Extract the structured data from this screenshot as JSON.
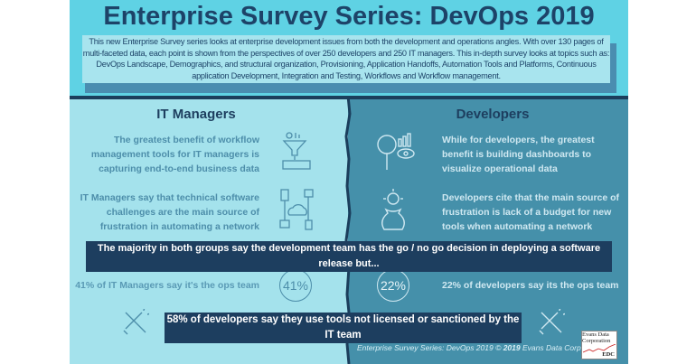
{
  "title": "Enterprise Survey Series: DevOps 2019",
  "intro": "This new Enterprise Survey series looks at enterprise development issues from both the development and operations angles.  With over 130 pages of multi-faceted data, each point is shown from  the perspectives of over 250 developers and 250 IT managers. This in-depth survey looks at topics such as:  DevOps Landscape, Demographics, and structural organization, Provisioning, Application Handoffs, Automation Tools and Platforms, Continuous application Development, Integration and Testing, Workflows and Workflow management.",
  "left": {
    "heading": "IT Managers",
    "point1": "The greatest benefit of workflow management tools for IT managers is capturing end-to-end business data",
    "point2": "IT Managers say that technical software challenges are the main source of frustration in automating a network",
    "stat_text": "41% of IT Managers say it's the ops team",
    "stat_circle": "41%"
  },
  "right": {
    "heading": "Developers",
    "point1": "While for developers, the greatest benefit is  building dashboards to visualize operational data",
    "point2": "Developers cite that the main source of frustration is lack of a budget for new tools when automating a network",
    "stat_text": "22% of developers  say its the ops team",
    "stat_circle": "22%"
  },
  "banner1": "The majority in both groups say the development team has the go / no go decision in deploying a software release but...",
  "banner2": "58% of developers say they use tools not licensed or sanctioned by the IT team",
  "credit": {
    "prefix": "Enterprise Survey Series: DevOps 2019 © ",
    "year": "2019",
    "suffix": " Evans Data Corp"
  },
  "logo": {
    "line1": "Evans Data",
    "line2": "Corporation",
    "abbr": "EDC"
  },
  "colors": {
    "header": "#5fd2e4",
    "navy": "#1d3e5f",
    "left_bg": "#a4e2ec",
    "right_bg": "#4590aa"
  }
}
